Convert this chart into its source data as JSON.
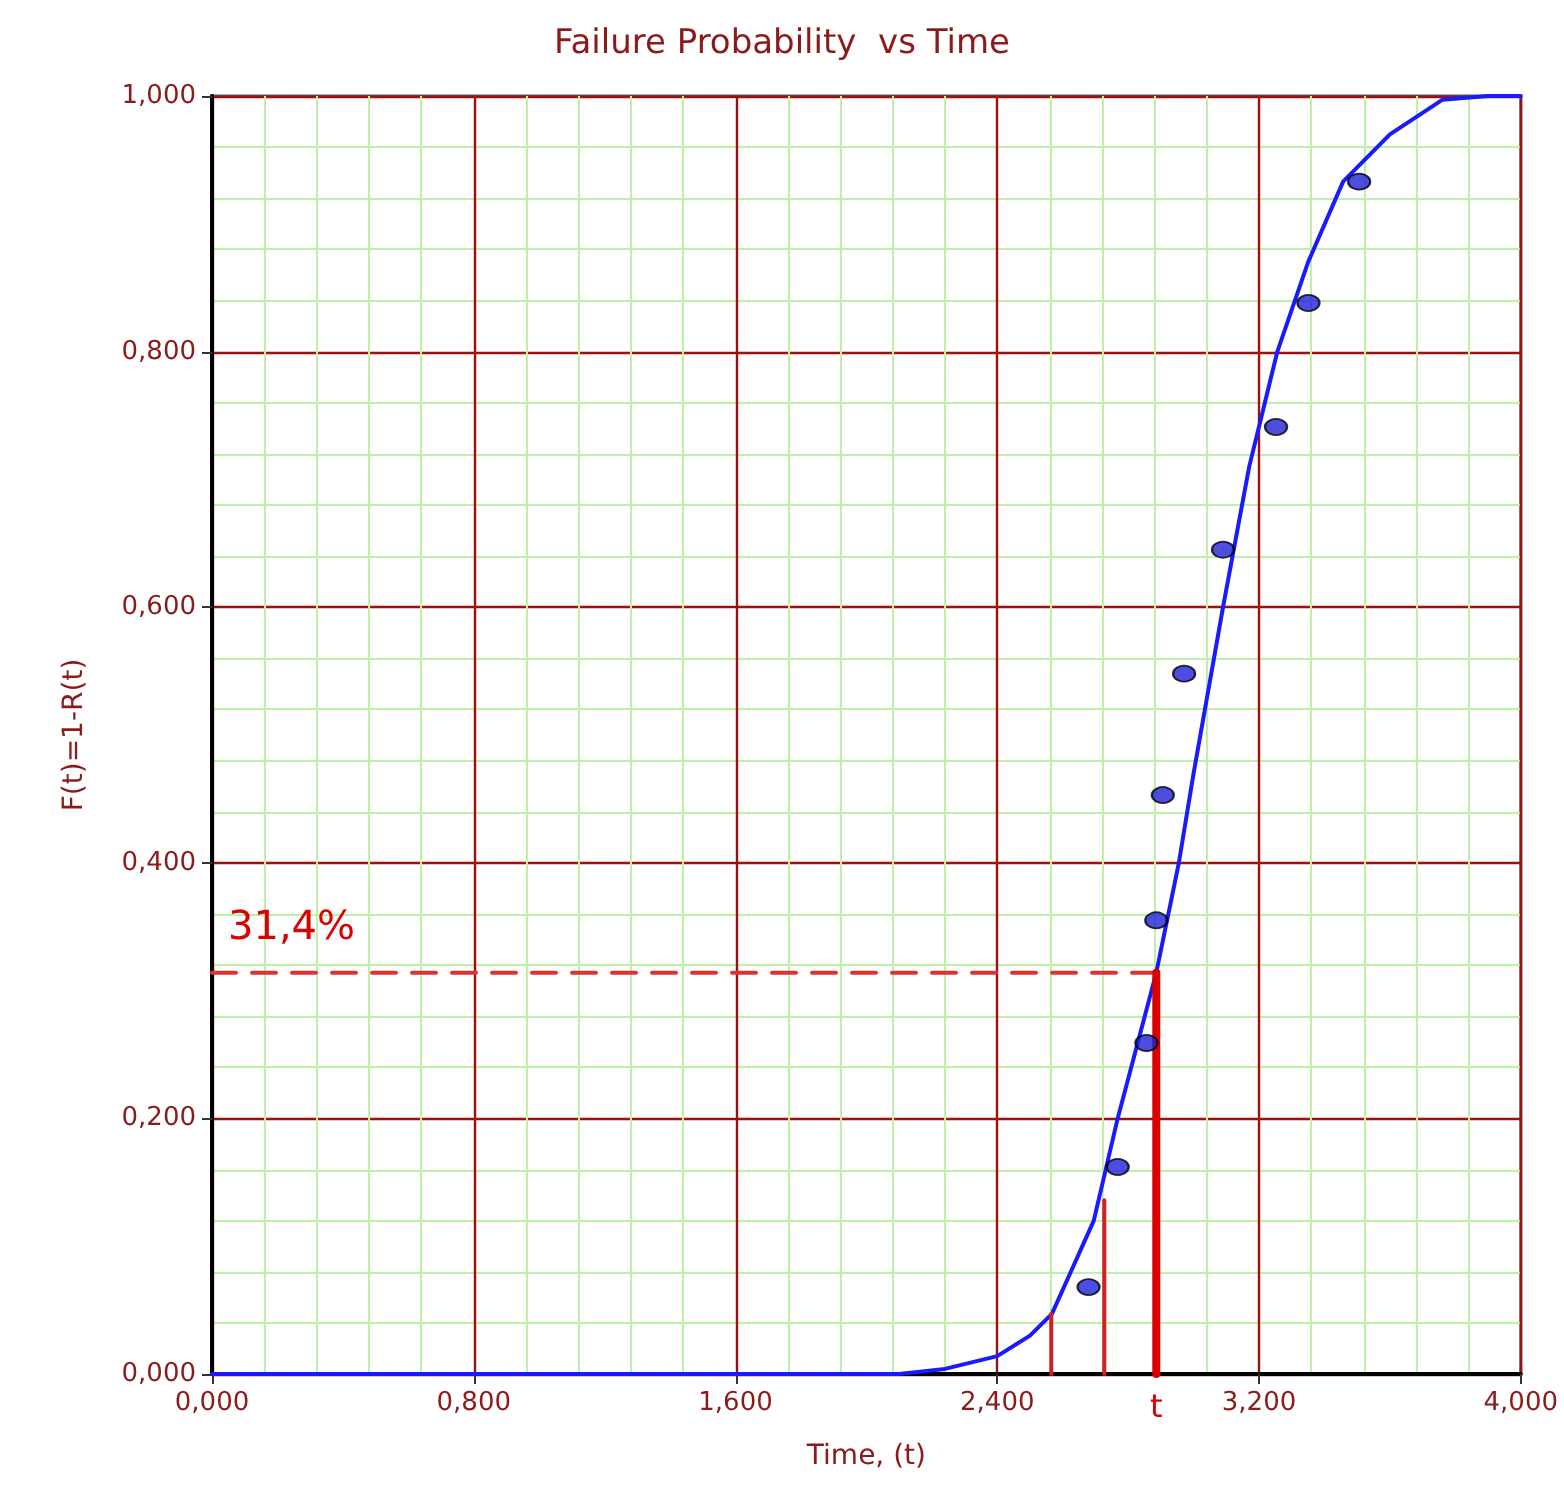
{
  "chart_data": {
    "type": "scatter",
    "title": "Failure Probability  vs Time",
    "xlabel": "Time, (t)",
    "ylabel": "F(t)=1-R(t)",
    "xlim": [
      0,
      4
    ],
    "ylim": [
      0,
      1
    ],
    "xticks": [
      {
        "value": 0,
        "label": "0,000"
      },
      {
        "value": 0.16,
        "label": null
      },
      {
        "value": 0.32,
        "label": null
      },
      {
        "value": 0.48,
        "label": null
      },
      {
        "value": 0.64,
        "label": null
      },
      {
        "value": 0.8,
        "label": "0,800"
      },
      {
        "value": 0.96,
        "label": null
      },
      {
        "value": 1.12,
        "label": null
      },
      {
        "value": 1.28,
        "label": null
      },
      {
        "value": 1.44,
        "label": null
      },
      {
        "value": 1.6,
        "label": "1,600"
      },
      {
        "value": 1.76,
        "label": null
      },
      {
        "value": 1.92,
        "label": null
      },
      {
        "value": 2.08,
        "label": null
      },
      {
        "value": 2.24,
        "label": null
      },
      {
        "value": 2.4,
        "label": "2,400"
      },
      {
        "value": 2.56,
        "label": null
      },
      {
        "value": 2.72,
        "label": null
      },
      {
        "value": 2.886,
        "label": "t"
      },
      {
        "value": 2.88,
        "label": null
      },
      {
        "value": 3.04,
        "label": null
      },
      {
        "value": 3.2,
        "label": "3,200"
      },
      {
        "value": 3.36,
        "label": null
      },
      {
        "value": 3.52,
        "label": null
      },
      {
        "value": 3.68,
        "label": null
      },
      {
        "value": 3.84,
        "label": null
      },
      {
        "value": 4,
        "label": "4,000"
      }
    ],
    "yticks": [
      {
        "value": 0,
        "label": "0,000"
      },
      {
        "value": 0.04,
        "label": null
      },
      {
        "value": 0.08,
        "label": null
      },
      {
        "value": 0.12,
        "label": null
      },
      {
        "value": 0.16,
        "label": null
      },
      {
        "value": 0.2,
        "label": "0,200"
      },
      {
        "value": 0.24,
        "label": null
      },
      {
        "value": 0.28,
        "label": null
      },
      {
        "value": 0.32,
        "label": null
      },
      {
        "value": 0.36,
        "label": null
      },
      {
        "value": 0.4,
        "label": "0,400"
      },
      {
        "value": 0.44,
        "label": null
      },
      {
        "value": 0.48,
        "label": null
      },
      {
        "value": 0.52,
        "label": null
      },
      {
        "value": 0.56,
        "label": null
      },
      {
        "value": 0.6,
        "label": "0,600"
      },
      {
        "value": 0.64,
        "label": null
      },
      {
        "value": 0.68,
        "label": null
      },
      {
        "value": 0.72,
        "label": null
      },
      {
        "value": 0.76,
        "label": null
      },
      {
        "value": 0.8,
        "label": "0,800"
      },
      {
        "value": 0.84,
        "label": null
      },
      {
        "value": 0.88,
        "label": null
      },
      {
        "value": 0.92,
        "label": null
      },
      {
        "value": 0.96,
        "label": null
      },
      {
        "value": 1,
        "label": "1,000"
      }
    ],
    "grid": true,
    "series": [
      {
        "type": "line",
        "color": "#1a1aff",
        "marker": "none",
        "line_style": "solid",
        "x": [
          0,
          2.1,
          2.24,
          2.4,
          2.5,
          2.567,
          2.695,
          2.768,
          2.886,
          2.955,
          3.0,
          3.09,
          3.17,
          3.256,
          3.35,
          3.457,
          3.6,
          3.76,
          3.9,
          4.0
        ],
        "values": [
          0,
          0,
          0.004,
          0.014,
          0.03,
          0.047,
          0.12,
          0.2,
          0.314,
          0.4,
          0.47,
          0.6,
          0.71,
          0.8,
          0.87,
          0.933,
          0.97,
          0.997,
          1,
          1
        ]
      },
      {
        "color": "#2020d8",
        "marker": "circle",
        "x": [
          2.679,
          2.768,
          2.856,
          2.886,
          2.906,
          2.971,
          3.09,
          3.252,
          3.351,
          3.506
        ],
        "values": [
          0.068,
          0.162,
          0.259,
          0.355,
          0.453,
          0.548,
          0.645,
          0.741,
          0.838,
          0.933
        ]
      },
      {
        "type": "line",
        "color": "#dd3333",
        "marker": "none",
        "line_style": "dashed",
        "x": [
          0,
          2.886
        ],
        "values": [
          0.314,
          0.314
        ]
      },
      {
        "type": "line",
        "color": "#dd0000",
        "marker": "none",
        "line_style": "solid",
        "x": [
          2.886,
          2.886
        ],
        "values": [
          0,
          0.314
        ]
      },
      {
        "type": "line",
        "color": "#cc2222",
        "marker": "none",
        "line_style": "solid",
        "x": [
          2.565,
          2.565
        ],
        "values": [
          0,
          0.047
        ]
      },
      {
        "type": "line",
        "color": "#cc2222",
        "marker": "none",
        "line_style": "solid",
        "x": [
          2.727,
          2.727
        ],
        "values": [
          0,
          0.136
        ]
      }
    ],
    "annotations": [
      {
        "text": "31,4%",
        "x": 0,
        "y": 0.314
      }
    ]
  }
}
